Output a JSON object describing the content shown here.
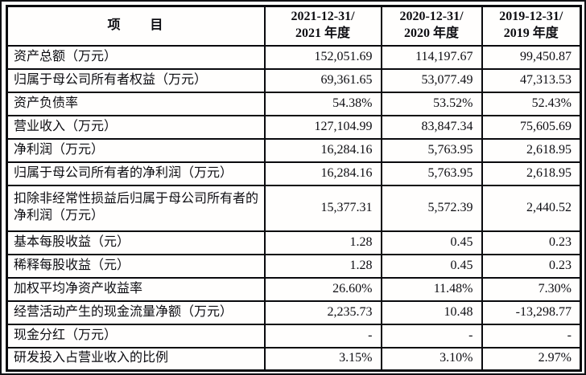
{
  "table": {
    "item_header": "项　　目",
    "period_headers": [
      {
        "line1": "2021-12-31/",
        "line2": "2021 年度"
      },
      {
        "line1": "2020-12-31/",
        "line2": "2020 年度"
      },
      {
        "line1": "2019-12-31/",
        "line2": "2019 年度"
      }
    ],
    "rows": [
      {
        "label": "资产总额（万元）",
        "values": [
          "152,051.69",
          "114,197.67",
          "99,450.87"
        ]
      },
      {
        "label": "归属于母公司所有者权益（万元）",
        "values": [
          "69,361.65",
          "53,077.49",
          "47,313.53"
        ]
      },
      {
        "label": "资产负债率",
        "values": [
          "54.38%",
          "53.52%",
          "52.43%"
        ]
      },
      {
        "label": "营业收入（万元）",
        "values": [
          "127,104.99",
          "83,847.34",
          "75,605.69"
        ]
      },
      {
        "label": "净利润（万元）",
        "values": [
          "16,284.16",
          "5,763.95",
          "2,618.95"
        ]
      },
      {
        "label": "归属于母公司所有者的净利润（万元）",
        "values": [
          "16,284.16",
          "5,763.95",
          "2,618.95"
        ]
      },
      {
        "label": "扣除非经常性损益后归属于母公司所有者的净利润（万元）",
        "values": [
          "15,377.31",
          "5,572.39",
          "2,440.52"
        ]
      },
      {
        "label": "基本每股收益（元）",
        "values": [
          "1.28",
          "0.45",
          "0.23"
        ]
      },
      {
        "label": "稀释每股收益（元）",
        "values": [
          "1.28",
          "0.45",
          "0.23"
        ]
      },
      {
        "label": "加权平均净资产收益率",
        "values": [
          "26.60%",
          "11.48%",
          "7.30%"
        ]
      },
      {
        "label": "经营活动产生的现金流量净额（万元）",
        "values": [
          "2,235.73",
          "10.48",
          "-13,298.77"
        ]
      },
      {
        "label": "现金分红（万元）",
        "values": [
          "-",
          "-",
          "-"
        ]
      },
      {
        "label": "研发投入占营业收入的比例",
        "values": [
          "3.15%",
          "3.10%",
          "2.97%"
        ]
      }
    ]
  }
}
